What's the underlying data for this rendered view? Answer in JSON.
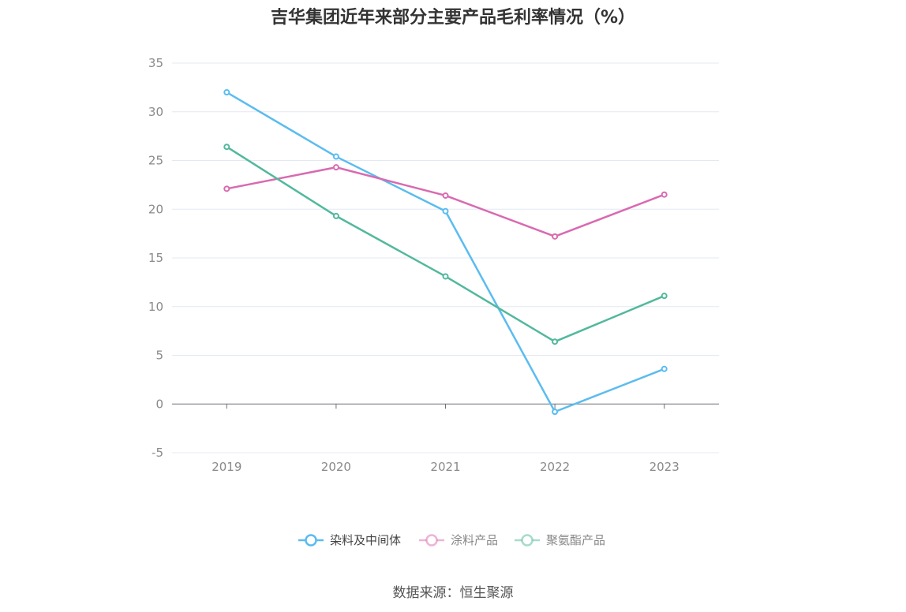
{
  "chart_data": {
    "type": "line",
    "title": "吉华集团近年来部分主要产品毛利率情况（%）",
    "xlabel": "",
    "ylabel": "",
    "categories": [
      "2019",
      "2020",
      "2021",
      "2022",
      "2023"
    ],
    "ylim": [
      -5,
      35
    ],
    "yticks": [
      35,
      30,
      25,
      20,
      15,
      10,
      5,
      0,
      -5
    ],
    "grid": true,
    "legend_position": "bottom",
    "series": [
      {
        "name": "染料及中间体",
        "color": "#5bbcef",
        "values": [
          32.0,
          25.4,
          19.8,
          -0.8,
          3.6
        ]
      },
      {
        "name": "涂料产品",
        "color": "#d96ab0",
        "values": [
          22.1,
          24.3,
          21.4,
          17.2,
          21.5
        ]
      },
      {
        "name": "聚氨酯产品",
        "color": "#52b89c",
        "values": [
          26.4,
          19.3,
          13.1,
          6.4,
          11.1
        ]
      }
    ]
  },
  "footer": {
    "source": "数据来源：恒生聚源"
  }
}
